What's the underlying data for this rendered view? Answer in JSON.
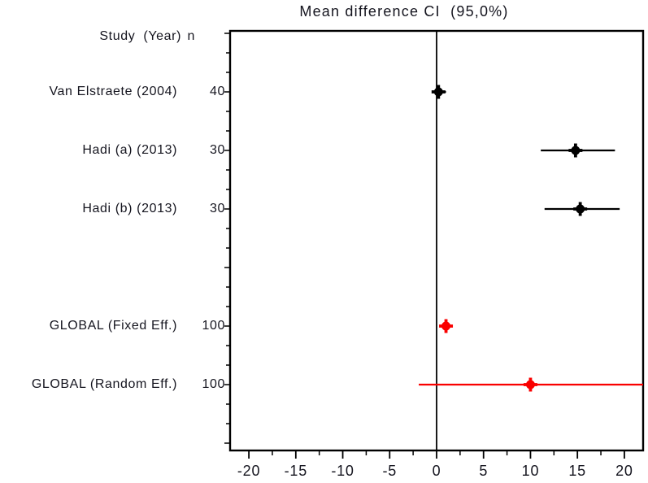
{
  "chart_data": {
    "type": "scatter",
    "subtype": "forest-plot",
    "title": "Mean difference CI  (95,0%)",
    "columns": {
      "study": "Study  (Year)",
      "n": "n"
    },
    "x_axis": {
      "min": -22,
      "max": 22,
      "major_ticks": [
        -20,
        -15,
        -10,
        -5,
        0,
        5,
        10,
        15,
        20
      ],
      "minor_tick_step": 2.5,
      "reference_line_x": 0
    },
    "rows": [
      {
        "study": "Van Elstraete (2004)",
        "n": "40",
        "mean": 0.2,
        "ci_low": -0.5,
        "ci_high": 1.0,
        "color": "#000000",
        "row": 1
      },
      {
        "study": "Hadi (a) (2013)",
        "n": "30",
        "mean": 14.8,
        "ci_low": 11.1,
        "ci_high": 19.0,
        "color": "#000000",
        "row": 2
      },
      {
        "study": "Hadi (b) (2013)",
        "n": "30",
        "mean": 15.3,
        "ci_low": 11.5,
        "ci_high": 19.5,
        "color": "#000000",
        "row": 3
      },
      {
        "study": "GLOBAL (Fixed Eff.)",
        "n": "100",
        "mean": 1.0,
        "ci_low": 0.3,
        "ci_high": 1.7,
        "color": "#fa0000",
        "row": 5
      },
      {
        "study": "GLOBAL (Random Eff.)",
        "n": "100",
        "mean": 10.0,
        "ci_low": -1.9,
        "ci_high": 22.0,
        "color": "#fa0000",
        "row": 6
      }
    ],
    "legend_position": "none",
    "grid": false
  },
  "colors": {
    "frame": "#000000",
    "reference_line": "#000000",
    "axis_text": "#15151f",
    "study_marker": "#000000",
    "global_marker": "#fa0000"
  }
}
